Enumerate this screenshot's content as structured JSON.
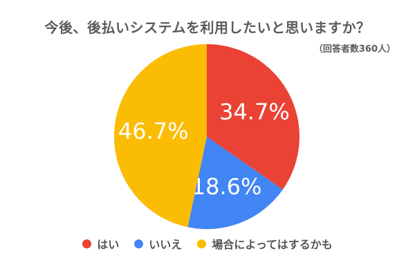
{
  "chart_data": {
    "type": "pie",
    "title": "今後、後払いシステムを利用したいと思いますか？",
    "subtitle": "（回答者数360人）",
    "slices": [
      {
        "label": "はい",
        "value": 34.7,
        "value_label": "34.7%",
        "color": "#ea4335"
      },
      {
        "label": "いいえ",
        "value": 18.6,
        "value_label": "18.6%",
        "color": "#4285f4"
      },
      {
        "label": "場合によってはするかも",
        "value": 46.7,
        "value_label": "46.7%",
        "color": "#fbbc04"
      }
    ],
    "start_angle_deg": 0,
    "direction": "clockwise",
    "legend_position": "bottom"
  }
}
